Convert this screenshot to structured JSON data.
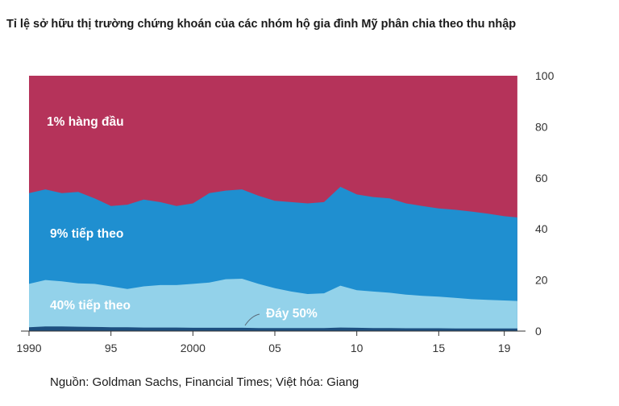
{
  "title": "Tỉ lệ sở hữu thị trường chứng khoán của các nhóm hộ gia đình Mỹ phân chia theo thu nhập",
  "source": "Nguồn: Goldman Sachs, Financial Times; Việt hóa: Giang",
  "colors": {
    "top1": "#b5335a",
    "next9": "#1f8fd0",
    "next40": "#93d2ea",
    "bottom50": "#1d4f80",
    "axis": "#333333"
  },
  "chart_data": {
    "type": "area",
    "stacked": true,
    "title": "Tỉ lệ sở hữu thị trường chứng khoán của các nhóm hộ gia đình Mỹ phân chia theo thu nhập",
    "xlabel": "",
    "ylabel": "",
    "xlim": [
      1990,
      2020
    ],
    "ylim": [
      0,
      100
    ],
    "x_ticks": [
      "1990",
      "95",
      "2000",
      "05",
      "10",
      "15",
      "19"
    ],
    "x_tick_values": [
      1990,
      1995,
      2000,
      2005,
      2010,
      2015,
      2019
    ],
    "y_ticks": [
      0,
      20,
      40,
      60,
      80,
      100
    ],
    "y_axis_position": "right",
    "grid": false,
    "x": [
      1990,
      1991,
      1992,
      1993,
      1994,
      1995,
      1996,
      1997,
      1998,
      1999,
      2000,
      2001,
      2002,
      2003,
      2004,
      2005,
      2006,
      2007,
      2008,
      2009,
      2010,
      2011,
      2012,
      2013,
      2014,
      2015,
      2016,
      2017,
      2018,
      2019,
      2019.8
    ],
    "cumulative_tops": {
      "bottom50": [
        1.5,
        1.8,
        1.8,
        1.7,
        1.6,
        1.5,
        1.5,
        1.4,
        1.4,
        1.4,
        1.3,
        1.3,
        1.3,
        1.3,
        1.2,
        1.2,
        1.2,
        1.2,
        1.2,
        1.4,
        1.3,
        1.2,
        1.2,
        1.1,
        1.1,
        1.1,
        1.0,
        1.0,
        1.0,
        1.0,
        1.0
      ],
      "next40": [
        18.5,
        20.0,
        19.5,
        18.7,
        18.5,
        17.5,
        16.5,
        17.5,
        18.0,
        18.0,
        18.5,
        19.0,
        20.3,
        20.5,
        18.5,
        16.8,
        15.5,
        14.5,
        14.8,
        17.8,
        16.0,
        15.5,
        15.0,
        14.3,
        13.8,
        13.5,
        13.0,
        12.5,
        12.2,
        12.0,
        11.8
      ],
      "next9": [
        54.0,
        55.5,
        54.0,
        54.5,
        52.0,
        49.0,
        49.5,
        51.5,
        50.5,
        49.0,
        50.0,
        54.0,
        55.0,
        55.5,
        53.0,
        51.0,
        50.5,
        50.0,
        50.5,
        56.5,
        53.5,
        52.5,
        52.0,
        50.0,
        49.0,
        48.0,
        47.5,
        46.8,
        46.0,
        45.0,
        44.5
      ],
      "top1": [
        100,
        100,
        100,
        100,
        100,
        100,
        100,
        100,
        100,
        100,
        100,
        100,
        100,
        100,
        100,
        100,
        100,
        100,
        100,
        100,
        100,
        100,
        100,
        100,
        100,
        100,
        100,
        100,
        100,
        100,
        100
      ]
    },
    "series": [
      {
        "name": "1% hàng đầu",
        "key": "top1"
      },
      {
        "name": "9% tiếp theo",
        "key": "next9"
      },
      {
        "name": "40% tiếp theo",
        "key": "next40"
      },
      {
        "name": "Đáy 50%",
        "key": "bottom50"
      }
    ]
  }
}
